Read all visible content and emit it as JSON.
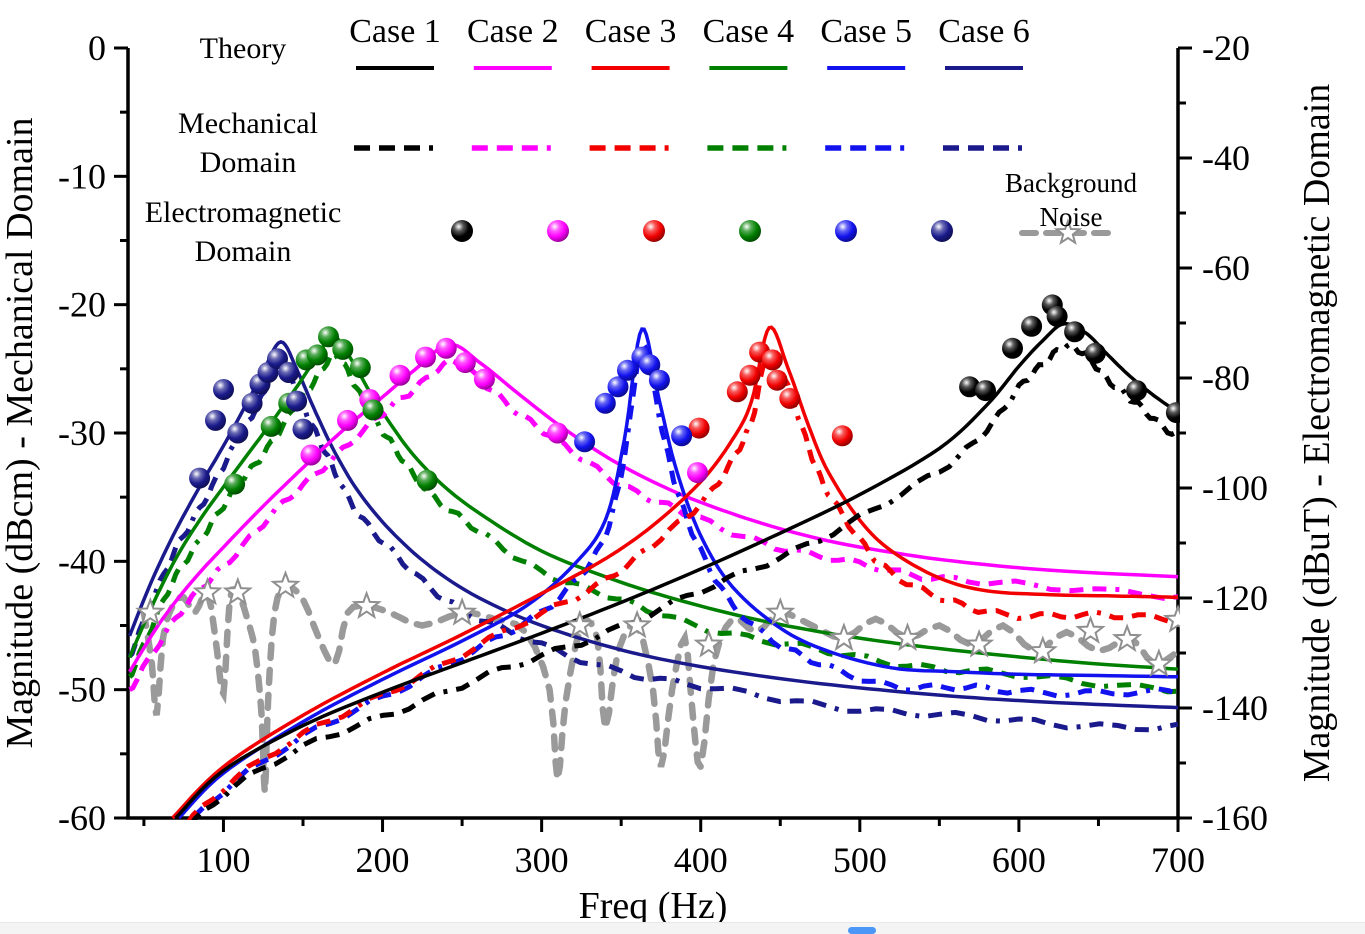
{
  "axes": {
    "x": {
      "label": "Freq (Hz)",
      "min": 40,
      "max": 700,
      "major_ticks": [
        100,
        200,
        300,
        400,
        500,
        600,
        700
      ],
      "minor_ticks": [
        50,
        150,
        250,
        350,
        450,
        550,
        650
      ]
    },
    "y_left": {
      "label": "Magnitude (dBcm) - Mechanical Domain",
      "min": -60,
      "max": 0,
      "major_ticks": [
        0,
        -10,
        -20,
        -30,
        -40,
        -50,
        -60
      ],
      "minor_ticks": [
        -5,
        -15,
        -25,
        -35,
        -45,
        -55
      ]
    },
    "y_right": {
      "label": "Magnitude (dBuT) - Electromagnetic Domain",
      "min": -160,
      "max": -20,
      "major_ticks": [
        -20,
        -40,
        -60,
        -80,
        -100,
        -120,
        -140,
        -160
      ],
      "minor_ticks": [
        -30,
        -50,
        -70,
        -90,
        -110,
        -130,
        -150
      ]
    }
  },
  "legend": {
    "rows": [
      {
        "label": "Theory"
      },
      {
        "lines": [
          "Mechanical",
          "Domain"
        ]
      },
      {
        "lines": [
          "Electromagnetic",
          "Domain"
        ]
      }
    ],
    "background_noise": {
      "lines": [
        "Background",
        "Noise"
      ],
      "color": "#9a9a9a",
      "star_color": "#8f8f8f"
    },
    "cases": [
      {
        "label": "Case 1",
        "color": "#000000"
      },
      {
        "label": "Case 2",
        "color": "#ff00ff"
      },
      {
        "label": "Case 3",
        "color": "#f20000"
      },
      {
        "label": "Case 4",
        "color": "#008000"
      },
      {
        "label": "Case 5",
        "color": "#1212ee"
      },
      {
        "label": "Case 6",
        "color": "#1a1a8c"
      }
    ]
  },
  "chart_data": {
    "type": "line",
    "xlabel": "Freq (Hz)",
    "ylabel_left": "Magnitude (dBcm) - Mechanical Domain",
    "ylabel_right": "Magnitude (dBuT) - Electromagnetic Domain",
    "xlim": [
      40,
      700
    ],
    "ylim_left": [
      -60,
      0
    ],
    "ylim_right": [
      -160,
      -20
    ],
    "grid": false,
    "series": [
      {
        "name": "Case 1",
        "color": "#000000",
        "peak_hz": 628,
        "peak_dBcm": -21.5,
        "theory": [
          [
            70,
            -60
          ],
          [
            100,
            -56.3
          ],
          [
            150,
            -52.8
          ],
          [
            200,
            -50.2
          ],
          [
            250,
            -47.9
          ],
          [
            300,
            -45.6
          ],
          [
            350,
            -43.2
          ],
          [
            400,
            -40.6
          ],
          [
            450,
            -37.8
          ],
          [
            500,
            -34.8
          ],
          [
            550,
            -31.2
          ],
          [
            580,
            -27.8
          ],
          [
            600,
            -24.8
          ],
          [
            615,
            -22.8
          ],
          [
            628,
            -21.5
          ],
          [
            642,
            -22.2
          ],
          [
            655,
            -23.8
          ],
          [
            670,
            -25.6
          ],
          [
            685,
            -27.1
          ],
          [
            700,
            -28.4
          ]
        ],
        "mech_offset_db": -1.8,
        "em_points": [
          [
            569,
            -81.6
          ],
          [
            579,
            -82.3
          ],
          [
            596,
            -74.6
          ],
          [
            608,
            -70.6
          ],
          [
            621,
            -66.7
          ],
          [
            624,
            -68.8
          ],
          [
            635,
            -71.6
          ],
          [
            648,
            -75.5
          ],
          [
            674,
            -82.3
          ],
          [
            699,
            -86.3
          ]
        ]
      },
      {
        "name": "Case 2",
        "color": "#ff00ff",
        "peak_hz": 242,
        "peak_dBcm": -23.1,
        "theory": [
          [
            41,
            -48.6
          ],
          [
            60,
            -44.8
          ],
          [
            80,
            -41.6
          ],
          [
            100,
            -38.9
          ],
          [
            125,
            -35.7
          ],
          [
            150,
            -32.7
          ],
          [
            175,
            -29.8
          ],
          [
            200,
            -27.2
          ],
          [
            220,
            -25.1
          ],
          [
            242,
            -23.1
          ],
          [
            262,
            -24.6
          ],
          [
            285,
            -26.9
          ],
          [
            310,
            -29.3
          ],
          [
            340,
            -31.8
          ],
          [
            370,
            -33.8
          ],
          [
            400,
            -35.4
          ],
          [
            440,
            -37.1
          ],
          [
            480,
            -38.4
          ],
          [
            520,
            -39.3
          ],
          [
            560,
            -40.0
          ],
          [
            620,
            -40.7
          ],
          [
            700,
            -41.2
          ]
        ],
        "mech_offset_db": -1.4,
        "em_points": [
          [
            155,
            -94.0
          ],
          [
            178,
            -87.7
          ],
          [
            192,
            -83.9
          ],
          [
            211,
            -79.5
          ],
          [
            227,
            -76.2
          ],
          [
            240,
            -74.6
          ],
          [
            252,
            -77.2
          ],
          [
            264,
            -80.2
          ],
          [
            310,
            -90.0
          ],
          [
            398,
            -97.2
          ]
        ]
      },
      {
        "name": "Case 3",
        "color": "#f20000",
        "peak_hz": 443,
        "peak_dBcm": -21.8,
        "theory": [
          [
            68,
            -60
          ],
          [
            100,
            -56.0
          ],
          [
            150,
            -52.0
          ],
          [
            200,
            -48.7
          ],
          [
            250,
            -45.7
          ],
          [
            300,
            -42.5
          ],
          [
            340,
            -39.8
          ],
          [
            370,
            -37.2
          ],
          [
            400,
            -33.8
          ],
          [
            420,
            -30.5
          ],
          [
            432,
            -27.5
          ],
          [
            443,
            -21.8
          ],
          [
            455,
            -25.0
          ],
          [
            468,
            -29.5
          ],
          [
            480,
            -33.0
          ],
          [
            500,
            -36.8
          ],
          [
            520,
            -39.2
          ],
          [
            550,
            -41.3
          ],
          [
            580,
            -42.3
          ],
          [
            620,
            -42.6
          ],
          [
            660,
            -42.7
          ],
          [
            700,
            -42.8
          ]
        ],
        "mech_offset_db": -1.6,
        "em_points": [
          [
            399,
            -89.1
          ],
          [
            423,
            -82.5
          ],
          [
            431,
            -79.5
          ],
          [
            437,
            -75.3
          ],
          [
            445,
            -76.7
          ],
          [
            448,
            -80.4
          ],
          [
            456,
            -83.7
          ],
          [
            489,
            -90.5
          ]
        ]
      },
      {
        "name": "Case 4",
        "color": "#008000",
        "peak_hz": 169,
        "peak_dBcm": -22.5,
        "theory": [
          [
            41,
            -47.5
          ],
          [
            55,
            -43.5
          ],
          [
            70,
            -39.8
          ],
          [
            85,
            -36.8
          ],
          [
            100,
            -34.2
          ],
          [
            115,
            -31.7
          ],
          [
            130,
            -29.2
          ],
          [
            145,
            -26.6
          ],
          [
            157,
            -24.4
          ],
          [
            169,
            -22.5
          ],
          [
            180,
            -24.2
          ],
          [
            192,
            -26.8
          ],
          [
            205,
            -29.3
          ],
          [
            220,
            -31.8
          ],
          [
            240,
            -34.3
          ],
          [
            265,
            -36.6
          ],
          [
            300,
            -39.2
          ],
          [
            340,
            -41.2
          ],
          [
            380,
            -42.8
          ],
          [
            430,
            -44.4
          ],
          [
            480,
            -45.6
          ],
          [
            530,
            -46.5
          ],
          [
            580,
            -47.2
          ],
          [
            640,
            -47.9
          ],
          [
            700,
            -48.4
          ]
        ],
        "mech_offset_db": -1.5,
        "em_points": [
          [
            107,
            -99.3
          ],
          [
            130,
            -88.8
          ],
          [
            141,
            -84.6
          ],
          [
            152,
            -76.7
          ],
          [
            159,
            -75.8
          ],
          [
            166,
            -72.5
          ],
          [
            175,
            -74.8
          ],
          [
            186,
            -78.1
          ],
          [
            194,
            -85.8
          ],
          [
            228,
            -98.6
          ]
        ]
      },
      {
        "name": "Case 5",
        "color": "#1212ee",
        "peak_hz": 363,
        "peak_dBcm": -21.9,
        "theory": [
          [
            72,
            -60
          ],
          [
            100,
            -56.5
          ],
          [
            150,
            -52.5
          ],
          [
            200,
            -49.2
          ],
          [
            250,
            -46.2
          ],
          [
            290,
            -43.5
          ],
          [
            320,
            -40.3
          ],
          [
            340,
            -36.8
          ],
          [
            352,
            -30.5
          ],
          [
            363,
            -21.9
          ],
          [
            374,
            -27.5
          ],
          [
            385,
            -33.0
          ],
          [
            400,
            -38.0
          ],
          [
            420,
            -42.0
          ],
          [
            450,
            -45.2
          ],
          [
            480,
            -47.0
          ],
          [
            520,
            -48.3
          ],
          [
            560,
            -48.6
          ],
          [
            600,
            -48.8
          ],
          [
            650,
            -48.9
          ],
          [
            700,
            -49.0
          ]
        ],
        "mech_offset_db": -1.3,
        "em_points": [
          [
            327,
            -91.6
          ],
          [
            340,
            -84.6
          ],
          [
            348,
            -81.6
          ],
          [
            354,
            -78.6
          ],
          [
            363,
            -76.2
          ],
          [
            368,
            -77.6
          ],
          [
            374,
            -80.4
          ],
          [
            388,
            -90.5
          ]
        ]
      },
      {
        "name": "Case 6",
        "color": "#1a1a8c",
        "peak_hz": 136,
        "peak_dBcm": -22.9,
        "theory": [
          [
            41,
            -45.8
          ],
          [
            55,
            -41.5
          ],
          [
            70,
            -37.6
          ],
          [
            85,
            -34.2
          ],
          [
            100,
            -31.0
          ],
          [
            112,
            -28.3
          ],
          [
            124,
            -25.5
          ],
          [
            136,
            -22.9
          ],
          [
            147,
            -25.3
          ],
          [
            158,
            -28.4
          ],
          [
            170,
            -31.5
          ],
          [
            185,
            -34.6
          ],
          [
            205,
            -37.6
          ],
          [
            230,
            -40.4
          ],
          [
            260,
            -42.8
          ],
          [
            300,
            -45.0
          ],
          [
            350,
            -46.9
          ],
          [
            400,
            -48.2
          ],
          [
            460,
            -49.3
          ],
          [
            520,
            -50.1
          ],
          [
            580,
            -50.7
          ],
          [
            640,
            -51.1
          ],
          [
            700,
            -51.4
          ]
        ],
        "mech_offset_db": -1.6,
        "em_points": [
          [
            85,
            -98.2
          ],
          [
            95,
            -87.7
          ],
          [
            100,
            -82.1
          ],
          [
            109,
            -90.0
          ],
          [
            118,
            -84.6
          ],
          [
            123,
            -81.1
          ],
          [
            128,
            -79.0
          ],
          [
            134,
            -76.5
          ],
          [
            141,
            -79.0
          ],
          [
            146,
            -84.2
          ],
          [
            150,
            -89.3
          ]
        ]
      }
    ],
    "background_noise": {
      "name": "Background Noise",
      "color": "#9a9a9a",
      "axis": "right",
      "points": [
        [
          50,
          -122.7
        ],
        [
          55,
          -132.0
        ],
        [
          58,
          -141.3
        ],
        [
          62,
          -127.3
        ],
        [
          68,
          -121.5
        ],
        [
          75,
          -119.9
        ],
        [
          82,
          -122.7
        ],
        [
          90,
          -119.0
        ],
        [
          96,
          -129.7
        ],
        [
          100,
          -137.4
        ],
        [
          104,
          -120.3
        ],
        [
          109,
          -119.0
        ],
        [
          115,
          -123.8
        ],
        [
          120,
          -129.7
        ],
        [
          124,
          -141.3
        ],
        [
          126,
          -155.3
        ],
        [
          128,
          -139.0
        ],
        [
          132,
          -122.7
        ],
        [
          139,
          -117.8
        ],
        [
          150,
          -120.3
        ],
        [
          160,
          -127.3
        ],
        [
          170,
          -132.0
        ],
        [
          178,
          -122.7
        ],
        [
          190,
          -121.5
        ],
        [
          205,
          -122.7
        ],
        [
          225,
          -125.0
        ],
        [
          250,
          -122.7
        ],
        [
          270,
          -123.8
        ],
        [
          290,
          -126.2
        ],
        [
          305,
          -136.7
        ],
        [
          310,
          -153.0
        ],
        [
          315,
          -139.0
        ],
        [
          325,
          -125.0
        ],
        [
          335,
          -127.3
        ],
        [
          340,
          -143.7
        ],
        [
          348,
          -129.7
        ],
        [
          360,
          -125.0
        ],
        [
          370,
          -136.7
        ],
        [
          375,
          -150.7
        ],
        [
          382,
          -136.7
        ],
        [
          390,
          -127.3
        ],
        [
          395,
          -141.3
        ],
        [
          400,
          -150.7
        ],
        [
          408,
          -132.0
        ],
        [
          420,
          -123.8
        ],
        [
          435,
          -126.2
        ],
        [
          450,
          -122.7
        ],
        [
          470,
          -125.0
        ],
        [
          490,
          -127.3
        ],
        [
          510,
          -123.8
        ],
        [
          530,
          -127.3
        ],
        [
          550,
          -125.0
        ],
        [
          570,
          -128.5
        ],
        [
          590,
          -125.0
        ],
        [
          610,
          -129.7
        ],
        [
          630,
          -126.2
        ],
        [
          650,
          -129.7
        ],
        [
          670,
          -127.3
        ],
        [
          685,
          -132.0
        ],
        [
          700,
          -129.7
        ]
      ],
      "stars": [
        [
          54,
          -122.7
        ],
        [
          90,
          -119.0
        ],
        [
          109,
          -119.0
        ],
        [
          139,
          -117.8
        ],
        [
          190,
          -121.5
        ],
        [
          250,
          -122.7
        ],
        [
          324,
          -125.0
        ],
        [
          360,
          -125.0
        ],
        [
          405,
          -128.5
        ],
        [
          450,
          -122.7
        ],
        [
          490,
          -127.3
        ],
        [
          530,
          -127.3
        ],
        [
          575,
          -128.5
        ],
        [
          615,
          -129.7
        ],
        [
          645,
          -126.0
        ],
        [
          668,
          -127.5
        ],
        [
          688,
          -132.0
        ],
        [
          700,
          -124.0
        ]
      ]
    }
  },
  "footer": {
    "strip_color": "#f4f4f5",
    "pill_color": "#4a97f7"
  }
}
